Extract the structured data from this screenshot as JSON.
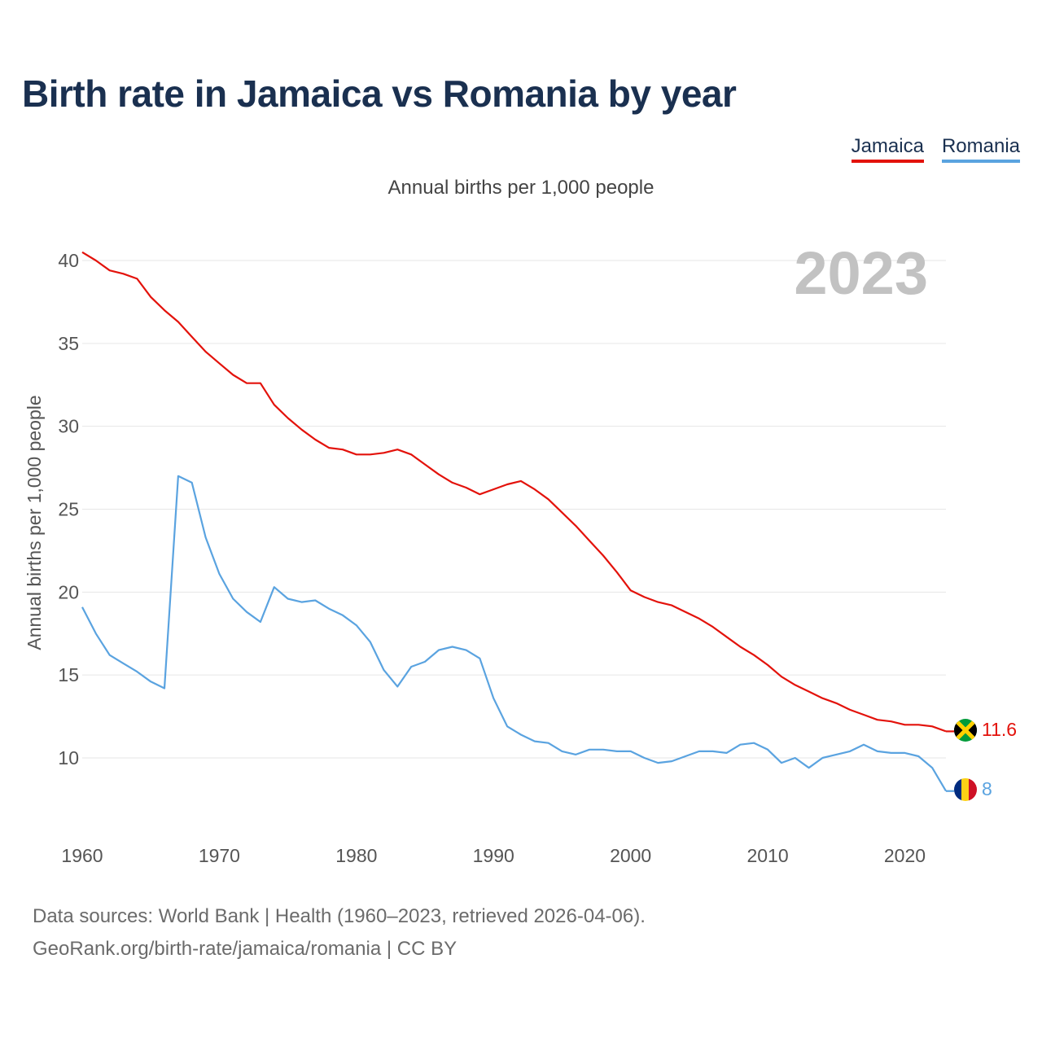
{
  "chart_data": {
    "type": "line",
    "title": "Birth rate in Jamaica vs Romania by year",
    "subtitle": "Annual births per 1,000 people",
    "ylabel": "Annual births per 1,000 people",
    "xlabel": "",
    "year_label": "2023",
    "x": [
      1960,
      1961,
      1962,
      1963,
      1964,
      1965,
      1966,
      1967,
      1968,
      1969,
      1970,
      1971,
      1972,
      1973,
      1974,
      1975,
      1976,
      1977,
      1978,
      1979,
      1980,
      1981,
      1982,
      1983,
      1984,
      1985,
      1986,
      1987,
      1988,
      1989,
      1990,
      1991,
      1992,
      1993,
      1994,
      1995,
      1996,
      1997,
      1998,
      1999,
      2000,
      2001,
      2002,
      2003,
      2004,
      2005,
      2006,
      2007,
      2008,
      2009,
      2010,
      2011,
      2012,
      2013,
      2014,
      2015,
      2016,
      2017,
      2018,
      2019,
      2020,
      2021,
      2022,
      2023
    ],
    "xlim": [
      1960,
      2023
    ],
    "ylim": [
      7,
      41
    ],
    "x_ticks": [
      1960,
      1970,
      1980,
      1990,
      2000,
      2010,
      2020
    ],
    "y_ticks": [
      10,
      15,
      20,
      25,
      30,
      35,
      40
    ],
    "grid": true,
    "series": [
      {
        "name": "Jamaica",
        "color": "#e3120b",
        "end_label": "11.6",
        "flag": "jamaica-flag",
        "values": [
          40.5,
          40.0,
          39.4,
          39.2,
          38.9,
          37.8,
          37.0,
          36.3,
          35.4,
          34.5,
          33.8,
          33.1,
          32.6,
          32.6,
          31.3,
          30.5,
          29.8,
          29.2,
          28.7,
          28.6,
          28.3,
          28.3,
          28.4,
          28.6,
          28.3,
          27.7,
          27.1,
          26.6,
          26.3,
          25.9,
          26.2,
          26.5,
          26.7,
          26.2,
          25.6,
          24.8,
          24.0,
          23.1,
          22.2,
          21.2,
          20.1,
          19.7,
          19.4,
          19.2,
          18.8,
          18.4,
          17.9,
          17.3,
          16.7,
          16.2,
          15.6,
          14.9,
          14.4,
          14.0,
          13.6,
          13.3,
          12.9,
          12.6,
          12.3,
          12.2,
          12.0,
          12.0,
          11.9,
          11.6
        ]
      },
      {
        "name": "Romania",
        "color": "#5aa3e0",
        "end_label": "8",
        "flag": "romania-flag",
        "values": [
          19.1,
          17.5,
          16.2,
          15.7,
          15.2,
          14.6,
          14.2,
          27.0,
          26.6,
          23.3,
          21.1,
          19.6,
          18.8,
          18.2,
          20.3,
          19.6,
          19.4,
          19.5,
          19.0,
          18.6,
          18.0,
          17.0,
          15.3,
          14.3,
          15.5,
          15.8,
          16.5,
          16.7,
          16.5,
          16.0,
          13.6,
          11.9,
          11.4,
          11.0,
          10.9,
          10.4,
          10.2,
          10.5,
          10.5,
          10.4,
          10.4,
          10.0,
          9.7,
          9.8,
          10.1,
          10.4,
          10.4,
          10.3,
          10.8,
          10.9,
          10.5,
          9.7,
          10.0,
          9.4,
          10.0,
          10.2,
          10.4,
          10.8,
          10.4,
          10.3,
          10.3,
          10.1,
          9.4,
          8.0
        ]
      }
    ]
  },
  "footer": {
    "line1": "Data sources: World Bank | Health (1960–2023, retrieved 2026-04-06).",
    "line2": "GeoRank.org/birth-rate/jamaica/romania | CC BY"
  }
}
